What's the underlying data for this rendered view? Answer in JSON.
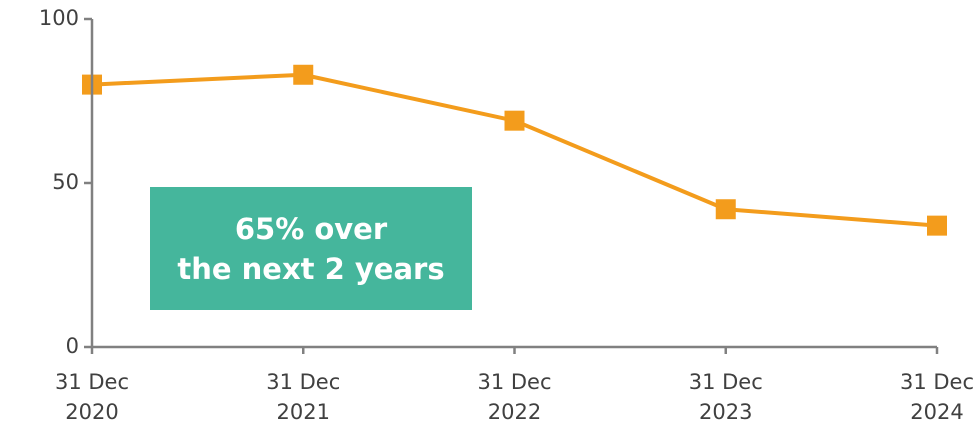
{
  "chart_data": {
    "type": "line",
    "categories": [
      "31 Dec 2020",
      "31 Dec 2021",
      "31 Dec 2022",
      "31 Dec 2023",
      "31 Dec 2024"
    ],
    "series": [
      {
        "color": "#f39c1c",
        "values": [
          80,
          83,
          69,
          42,
          37
        ]
      }
    ],
    "ylim": [
      0,
      100
    ],
    "yticks": [
      0,
      50,
      100
    ],
    "annotation": [
      "65% over",
      "the next 2 years"
    ],
    "annotation_color": "#45b69c"
  }
}
